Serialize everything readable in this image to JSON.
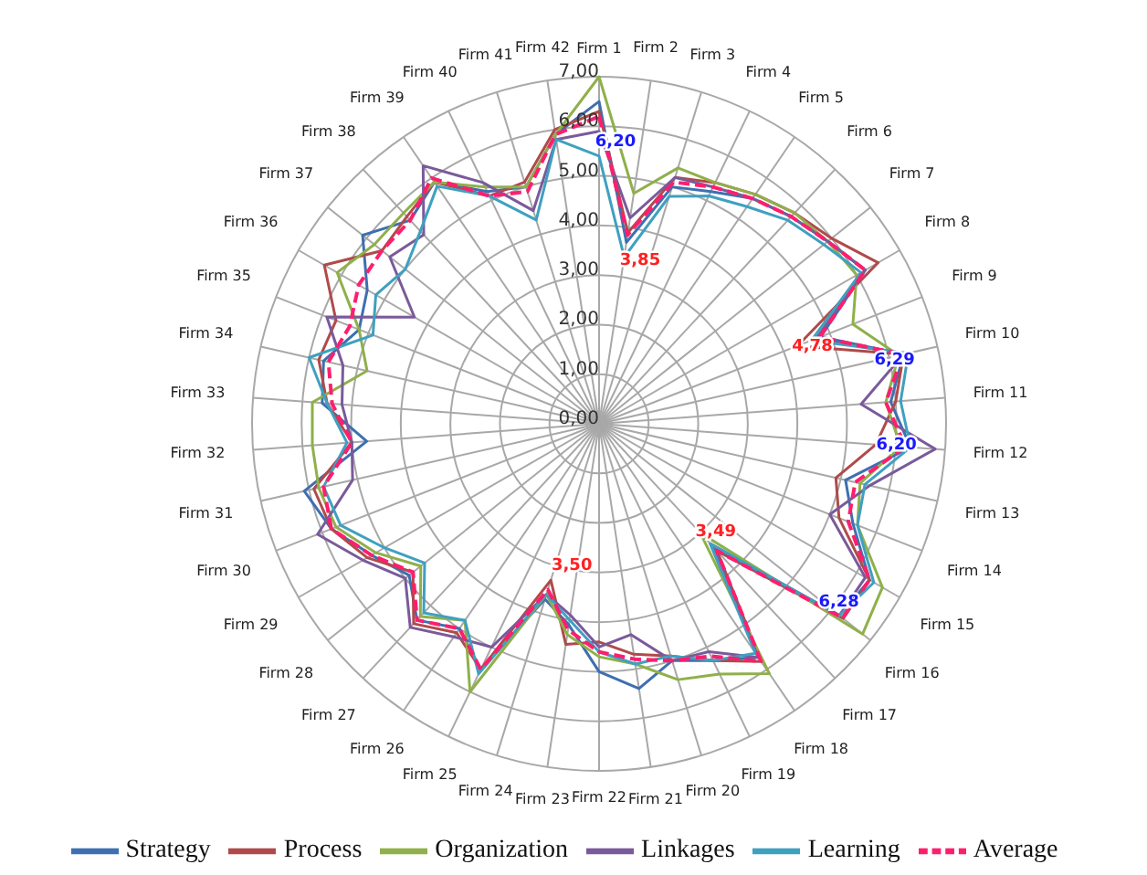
{
  "chart_data": {
    "type": "radar",
    "categories": [
      "Firm 1",
      "Firm 2",
      "Firm 3",
      "Firm 4",
      "Firm 5",
      "Firm 6",
      "Firm 7",
      "Firm 8",
      "Firm 9",
      "Firm 10",
      "Firm 11",
      "Firm 12",
      "Firm 13",
      "Firm 14",
      "Firm 15",
      "Firm 16",
      "Firm 17",
      "Firm 18",
      "Firm 19",
      "Firm 20",
      "Firm 21",
      "Firm 22",
      "Firm 23",
      "Firm 24",
      "Firm 25",
      "Firm 26",
      "Firm 27",
      "Firm 28",
      "Firm 29",
      "Firm 30",
      "Firm 31",
      "Firm 32",
      "Firm 33",
      "Firm 34",
      "Firm 35",
      "Firm 36",
      "Firm 37",
      "Firm 38",
      "Firm 39",
      "Firm 40",
      "Firm 41",
      "Firm 42"
    ],
    "series": [
      {
        "name": "Strategy",
        "color": "#3e6fb0",
        "values": [
          6.5,
          3.7,
          5.0,
          5.2,
          5.5,
          5.7,
          5.9,
          6.2,
          4.8,
          6.3,
          5.9,
          6.3,
          5.1,
          5.5,
          6.3,
          6.2,
          3.3,
          5.7,
          5.3,
          5.0,
          5.4,
          5.0,
          4.1,
          3.7,
          5.5,
          5.0,
          5.4,
          4.9,
          5.3,
          5.8,
          6.1,
          4.7,
          5.6,
          5.7,
          5.2,
          5.4,
          6.1,
          5.6,
          5.9,
          5.2,
          5.0,
          5.9
        ]
      },
      {
        "name": "Process",
        "color": "#b04a4a",
        "values": [
          6.3,
          3.9,
          5.2,
          5.4,
          5.6,
          5.8,
          6.0,
          6.5,
          4.3,
          6.3,
          6.0,
          5.6,
          4.9,
          5.2,
          6.3,
          6.3,
          3.5,
          5.8,
          5.3,
          4.9,
          4.7,
          4.4,
          4.5,
          3.3,
          5.5,
          5.1,
          5.5,
          4.8,
          5.4,
          5.8,
          5.9,
          5.0,
          5.5,
          5.8,
          5.7,
          6.4,
          5.6,
          5.7,
          5.9,
          5.1,
          5.1,
          6.0
        ]
      },
      {
        "name": "Organization",
        "color": "#8fb04a",
        "values": [
          7.0,
          4.7,
          5.4,
          5.4,
          5.6,
          5.8,
          5.9,
          6.0,
          5.5,
          6.2,
          5.8,
          6.1,
          5.4,
          5.6,
          6.6,
          6.8,
          3.0,
          6.1,
          5.6,
          5.4,
          4.9,
          4.7,
          4.3,
          3.6,
          6.0,
          4.8,
          5.3,
          4.6,
          5.2,
          5.7,
          5.8,
          5.8,
          5.8,
          4.8,
          5.2,
          6.1,
          5.8,
          5.8,
          5.9,
          5.3,
          5.0,
          5.9
        ]
      },
      {
        "name": "Linkages",
        "color": "#7a5a9a",
        "values": [
          5.9,
          4.2,
          5.2,
          5.3,
          5.5,
          5.7,
          5.9,
          6.2,
          4.7,
          6.3,
          5.3,
          6.8,
          5.6,
          5.0,
          6.2,
          6.2,
          3.4,
          5.7,
          5.1,
          5.0,
          4.3,
          4.5,
          3.9,
          3.6,
          5.0,
          5.2,
          5.6,
          5.0,
          5.5,
          6.1,
          5.1,
          5.0,
          5.2,
          5.3,
          5.9,
          4.3,
          5.4,
          5.2,
          6.3,
          5.4,
          4.5,
          5.8
        ]
      },
      {
        "name": "Learning",
        "color": "#3fa0c0",
        "values": [
          5.4,
          3.4,
          4.8,
          5.1,
          5.3,
          5.6,
          5.8,
          6.1,
          4.6,
          6.4,
          6.1,
          6.3,
          5.5,
          5.6,
          6.4,
          6.2,
          3.3,
          5.6,
          5.3,
          4.9,
          4.9,
          4.6,
          4.0,
          3.6,
          5.6,
          4.8,
          5.2,
          4.5,
          5.0,
          5.6,
          5.7,
          5.1,
          5.5,
          6.0,
          4.9,
          5.2,
          5.0,
          5.3,
          5.8,
          5.1,
          4.3,
          5.8
        ]
      },
      {
        "name": "Average",
        "color": "#ff1e6e",
        "line_style": "dashed",
        "value_labels": [
          "6,20",
          "3,85",
          null,
          null,
          null,
          null,
          null,
          null,
          "4,78",
          "6,29",
          null,
          "6,20",
          null,
          null,
          null,
          "6,28",
          "3,49",
          null,
          null,
          null,
          null,
          null,
          null,
          "3,50",
          null,
          null,
          null,
          null,
          null,
          null,
          null,
          null,
          null,
          null,
          null,
          null,
          null,
          null,
          null,
          null,
          null,
          null
        ],
        "values": [
          6.2,
          3.85,
          5.1,
          5.3,
          5.5,
          5.7,
          5.9,
          6.2,
          4.78,
          6.29,
          5.8,
          6.2,
          5.3,
          5.4,
          6.3,
          6.28,
          3.49,
          5.8,
          5.2,
          5.0,
          4.8,
          4.6,
          4.2,
          3.5,
          5.5,
          5.0,
          5.4,
          4.8,
          5.3,
          5.8,
          5.7,
          5.0,
          5.4,
          5.6,
          5.4,
          5.6,
          5.6,
          5.6,
          6.0,
          5.1,
          4.9,
          5.9
        ]
      }
    ],
    "ylim": [
      0,
      7
    ],
    "yticks": [
      {
        "value": 0,
        "label": "0,00"
      },
      {
        "value": 1,
        "label": "1,00"
      },
      {
        "value": 2,
        "label": "2,00"
      },
      {
        "value": 3,
        "label": "3,00"
      },
      {
        "value": 4,
        "label": "4,00"
      },
      {
        "value": 5,
        "label": "5,00"
      },
      {
        "value": 6,
        "label": "6,00"
      },
      {
        "value": 7,
        "label": "7,00"
      }
    ],
    "grid": true,
    "legend": "bottom",
    "marker": "none"
  }
}
